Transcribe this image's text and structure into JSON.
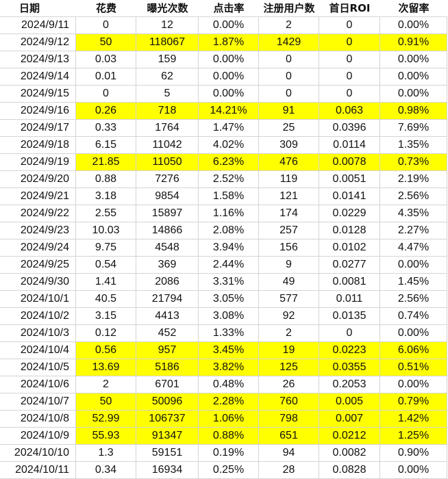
{
  "headers": [
    "日期",
    "花费",
    "曝光次数",
    "点击率",
    "注册用户数",
    "首日ROI",
    "次留率"
  ],
  "highlight_color": "#ffff00",
  "rows": [
    {
      "date": "2024/9/11",
      "cost": "0",
      "impressions": "12",
      "ctr": "0.00%",
      "registrations": "2",
      "roi": "0",
      "retention": "0.00%",
      "highlight": false
    },
    {
      "date": "2024/9/12",
      "cost": "50",
      "impressions": "118067",
      "ctr": "1.87%",
      "registrations": "1429",
      "roi": "0",
      "retention": "0.91%",
      "highlight": true
    },
    {
      "date": "2024/9/13",
      "cost": "0.03",
      "impressions": "159",
      "ctr": "0.00%",
      "registrations": "0",
      "roi": "0",
      "retention": "0.00%",
      "highlight": false
    },
    {
      "date": "2024/9/14",
      "cost": "0.01",
      "impressions": "62",
      "ctr": "0.00%",
      "registrations": "0",
      "roi": "0",
      "retention": "0.00%",
      "highlight": false
    },
    {
      "date": "2024/9/15",
      "cost": "0",
      "impressions": "5",
      "ctr": "0.00%",
      "registrations": "0",
      "roi": "0",
      "retention": "0.00%",
      "highlight": false
    },
    {
      "date": "2024/9/16",
      "cost": "0.26",
      "impressions": "718",
      "ctr": "14.21%",
      "registrations": "91",
      "roi": "0.063",
      "retention": "0.98%",
      "highlight": true
    },
    {
      "date": "2024/9/17",
      "cost": "0.33",
      "impressions": "1764",
      "ctr": "1.47%",
      "registrations": "25",
      "roi": "0.0396",
      "retention": "7.69%",
      "highlight": false
    },
    {
      "date": "2024/9/18",
      "cost": "6.15",
      "impressions": "11042",
      "ctr": "4.02%",
      "registrations": "309",
      "roi": "0.0114",
      "retention": "1.35%",
      "highlight": false
    },
    {
      "date": "2024/9/19",
      "cost": "21.85",
      "impressions": "11050",
      "ctr": "6.23%",
      "registrations": "476",
      "roi": "0.0078",
      "retention": "0.73%",
      "highlight": true
    },
    {
      "date": "2024/9/20",
      "cost": "0.88",
      "impressions": "7276",
      "ctr": "2.52%",
      "registrations": "119",
      "roi": "0.0051",
      "retention": "2.19%",
      "highlight": false
    },
    {
      "date": "2024/9/21",
      "cost": "3.18",
      "impressions": "9854",
      "ctr": "1.58%",
      "registrations": "121",
      "roi": "0.0141",
      "retention": "2.56%",
      "highlight": false
    },
    {
      "date": "2024/9/22",
      "cost": "2.55",
      "impressions": "15897",
      "ctr": "1.16%",
      "registrations": "174",
      "roi": "0.0229",
      "retention": "4.35%",
      "highlight": false
    },
    {
      "date": "2024/9/23",
      "cost": "10.03",
      "impressions": "14866",
      "ctr": "2.08%",
      "registrations": "257",
      "roi": "0.0128",
      "retention": "2.27%",
      "highlight": false
    },
    {
      "date": "2024/9/24",
      "cost": "9.75",
      "impressions": "4548",
      "ctr": "3.94%",
      "registrations": "156",
      "roi": "0.0102",
      "retention": "4.47%",
      "highlight": false
    },
    {
      "date": "2024/9/25",
      "cost": "0.54",
      "impressions": "369",
      "ctr": "2.44%",
      "registrations": "9",
      "roi": "0.0277",
      "retention": "0.00%",
      "highlight": false
    },
    {
      "date": "2024/9/30",
      "cost": "1.41",
      "impressions": "2086",
      "ctr": "3.31%",
      "registrations": "49",
      "roi": "0.0081",
      "retention": "1.45%",
      "highlight": false
    },
    {
      "date": "2024/10/1",
      "cost": "40.5",
      "impressions": "21794",
      "ctr": "3.05%",
      "registrations": "577",
      "roi": "0.011",
      "retention": "2.56%",
      "highlight": false
    },
    {
      "date": "2024/10/2",
      "cost": "3.15",
      "impressions": "4413",
      "ctr": "3.08%",
      "registrations": "92",
      "roi": "0.0135",
      "retention": "0.74%",
      "highlight": false
    },
    {
      "date": "2024/10/3",
      "cost": "0.12",
      "impressions": "452",
      "ctr": "1.33%",
      "registrations": "2",
      "roi": "0",
      "retention": "0.00%",
      "highlight": false
    },
    {
      "date": "2024/10/4",
      "cost": "0.56",
      "impressions": "957",
      "ctr": "3.45%",
      "registrations": "19",
      "roi": "0.0223",
      "retention": "6.06%",
      "highlight": true
    },
    {
      "date": "2024/10/5",
      "cost": "13.69",
      "impressions": "5186",
      "ctr": "3.82%",
      "registrations": "125",
      "roi": "0.0355",
      "retention": "0.51%",
      "highlight": true
    },
    {
      "date": "2024/10/6",
      "cost": "2",
      "impressions": "6701",
      "ctr": "0.48%",
      "registrations": "26",
      "roi": "0.2053",
      "retention": "0.00%",
      "highlight": false
    },
    {
      "date": "2024/10/7",
      "cost": "50",
      "impressions": "50096",
      "ctr": "2.28%",
      "registrations": "760",
      "roi": "0.005",
      "retention": "0.79%",
      "highlight": true
    },
    {
      "date": "2024/10/8",
      "cost": "52.99",
      "impressions": "106737",
      "ctr": "1.06%",
      "registrations": "798",
      "roi": "0.007",
      "retention": "1.42%",
      "highlight": true
    },
    {
      "date": "2024/10/9",
      "cost": "55.93",
      "impressions": "91347",
      "ctr": "0.88%",
      "registrations": "651",
      "roi": "0.0212",
      "retention": "1.25%",
      "highlight": true
    },
    {
      "date": "2024/10/10",
      "cost": "1.3",
      "impressions": "59151",
      "ctr": "0.19%",
      "registrations": "94",
      "roi": "0.0082",
      "retention": "0.90%",
      "highlight": false
    },
    {
      "date": "2024/10/11",
      "cost": "0.34",
      "impressions": "16934",
      "ctr": "0.25%",
      "registrations": "28",
      "roi": "0.0828",
      "retention": "0.00%",
      "highlight": false
    }
  ]
}
